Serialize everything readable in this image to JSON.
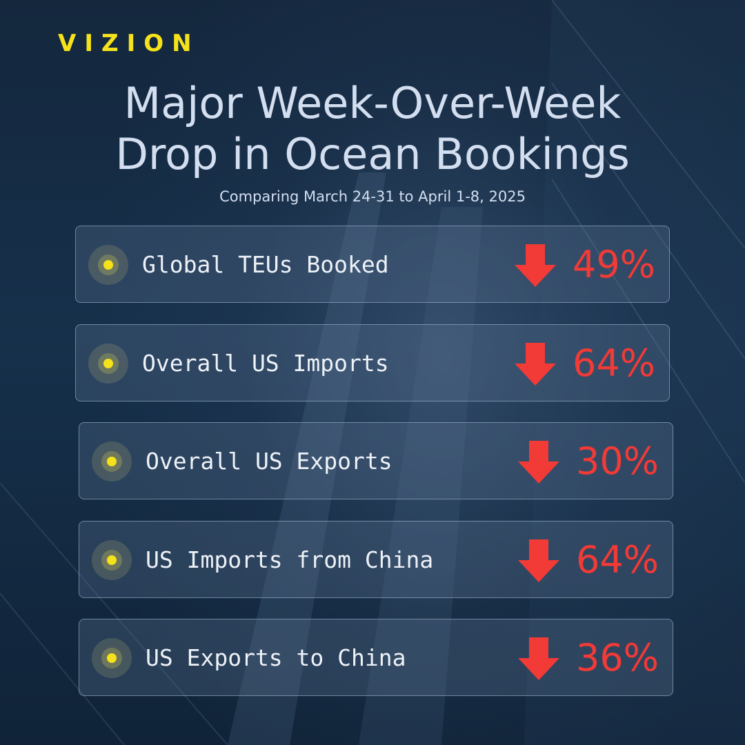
{
  "brand": {
    "logo_text": "VIZION",
    "accent_color": "#f6e21a"
  },
  "header": {
    "title_line1": "Major Week-Over-Week",
    "title_line2": "Drop in Ocean Bookings",
    "subtitle": "Comparing March 24-31 to April 1-8, 2025"
  },
  "colors": {
    "decline": "#f23a36",
    "text": "#d3dff0"
  },
  "metrics": [
    {
      "label": "Global TEUs Booked",
      "change": "49%",
      "direction": "down",
      "icon": "arrow-down-icon"
    },
    {
      "label": "Overall US Imports",
      "change": "64%",
      "direction": "down",
      "icon": "arrow-down-icon"
    },
    {
      "label": "Overall US Exports",
      "change": "30%",
      "direction": "down",
      "icon": "arrow-down-icon"
    },
    {
      "label": "US Imports from China",
      "change": "64%",
      "direction": "down",
      "icon": "arrow-down-icon"
    },
    {
      "label": "US Exports to China",
      "change": "36%",
      "direction": "down",
      "icon": "arrow-down-icon"
    }
  ]
}
